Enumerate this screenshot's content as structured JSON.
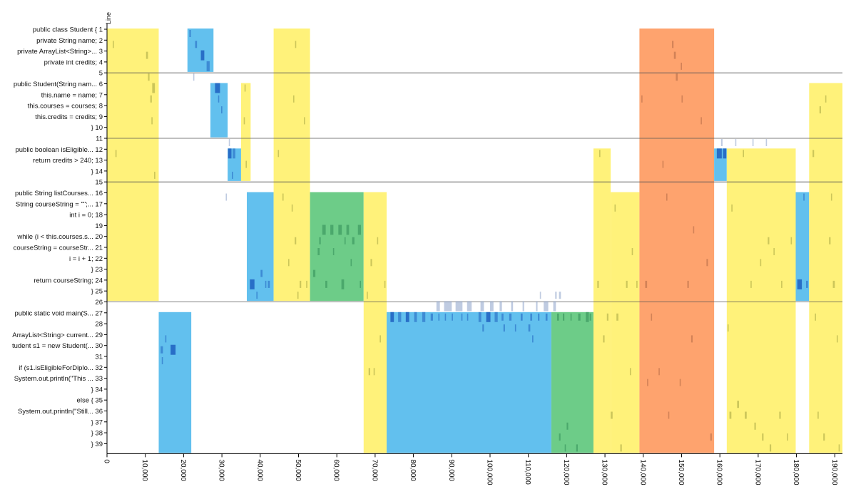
{
  "chart_data": {
    "type": "heatmap",
    "y_axis_title": "Line",
    "x_range": [
      0,
      192000
    ],
    "x_ticks": [
      0,
      10000,
      20000,
      30000,
      40000,
      50000,
      60000,
      70000,
      80000,
      90000,
      100000,
      110000,
      120000,
      130000,
      140000,
      150000,
      160000,
      170000,
      180000,
      190000
    ],
    "x_tick_labels": [
      "0",
      "10,000",
      "20,000",
      "30,000",
      "40,000",
      "50,000",
      "60,000",
      "70,000",
      "80,000",
      "90,000",
      "100,000",
      "110,000",
      "120,000",
      "130,000",
      "140,000",
      "150,000",
      "160,000",
      "170,000",
      "180,000",
      "190,000"
    ],
    "line_labels": [
      "public class Student { 1",
      "private String name; 2",
      "private ArrayList<String>... 3",
      "private int credits; 4",
      "5",
      "public Student(String nam... 6",
      "this.name = name; 7",
      "this.courses = courses; 8",
      "this.credits = credits; 9",
      "} 10",
      "11",
      "public boolean isEligible... 12",
      "return credits > 240; 13",
      "} 14",
      "15",
      "public String listCourses... 16",
      "String courseString = \"\";... 17",
      "int i = 0; 18",
      "19",
      "while (i < this.courses.s... 20",
      "courseString = courseStr... 21",
      "i = i + 1; 22",
      "} 23",
      "return courseString; 24",
      "} 25",
      "26",
      "public static void main(S... 27",
      "28",
      "ArrayList<String> current... 29",
      "tudent s1 = new Student(... 30",
      "31",
      "if (s1.isEligibleForDiplo... 32",
      "System.out.println(\"This ... 33",
      "} 34",
      "else { 35",
      "System.out.println(\"Still... 36",
      "} 37",
      "} 38",
      "} 39"
    ],
    "separator_lines": [
      5,
      11,
      15,
      26
    ],
    "colors": {
      "yellow": "#fff27a",
      "blue": "#62c0ee",
      "green": "#6dcc88",
      "orange": "#fea36e",
      "separator": "#555555",
      "fixation_light": "#8aa0c8",
      "fixation_dark": "#1f5fbf",
      "fixation_olive": "#9a9a3a"
    },
    "regions": [
      {
        "x0": 0,
        "x1": 13500,
        "y0": 1,
        "y1": 25,
        "color": "yellow"
      },
      {
        "x0": 13500,
        "x1": 22000,
        "y0": 27,
        "y1": 39,
        "color": "blue"
      },
      {
        "x0": 21000,
        "x1": 27800,
        "y0": 1,
        "y1": 4,
        "color": "blue"
      },
      {
        "x0": 27000,
        "x1": 31500,
        "y0": 6,
        "y1": 10,
        "color": "blue"
      },
      {
        "x0": 31500,
        "x1": 35000,
        "y0": 12,
        "y1": 14,
        "color": "blue"
      },
      {
        "x0": 35000,
        "x1": 37500,
        "y0": 6,
        "y1": 14,
        "color": "yellow"
      },
      {
        "x0": 36500,
        "x1": 43500,
        "y0": 16,
        "y1": 25,
        "color": "blue"
      },
      {
        "x0": 43500,
        "x1": 53000,
        "y0": 1,
        "y1": 25,
        "color": "yellow"
      },
      {
        "x0": 53000,
        "x1": 67000,
        "y0": 16,
        "y1": 25,
        "color": "green"
      },
      {
        "x0": 67000,
        "x1": 73000,
        "y0": 16,
        "y1": 39,
        "color": "yellow"
      },
      {
        "x0": 73000,
        "x1": 116000,
        "y0": 27,
        "y1": 39,
        "color": "blue"
      },
      {
        "x0": 116000,
        "x1": 127000,
        "y0": 27,
        "y1": 39,
        "color": "green"
      },
      {
        "x0": 127000,
        "x1": 131500,
        "y0": 12,
        "y1": 39,
        "color": "yellow"
      },
      {
        "x0": 131500,
        "x1": 139000,
        "y0": 16,
        "y1": 39,
        "color": "yellow"
      },
      {
        "x0": 139000,
        "x1": 158500,
        "y0": 1,
        "y1": 39,
        "color": "orange"
      },
      {
        "x0": 158500,
        "x1": 161800,
        "y0": 12,
        "y1": 14,
        "color": "blue"
      },
      {
        "x0": 161800,
        "x1": 179800,
        "y0": 12,
        "y1": 39,
        "color": "yellow"
      },
      {
        "x0": 179800,
        "x1": 183300,
        "y0": 16,
        "y1": 25,
        "color": "blue"
      },
      {
        "x0": 183300,
        "x1": 192000,
        "y0": 6,
        "y1": 39,
        "color": "yellow"
      }
    ],
    "fixations": [
      {
        "x": 1500,
        "line": 2,
        "dur": 300
      },
      {
        "x": 10200,
        "line": 3,
        "dur": 500
      },
      {
        "x": 11300,
        "line": 7,
        "dur": 400
      },
      {
        "x": 11800,
        "line": 6,
        "dur": 700
      },
      {
        "x": 11600,
        "line": 9,
        "dur": 300
      },
      {
        "x": 12300,
        "line": 14,
        "dur": 300
      },
      {
        "x": 10700,
        "line": 5,
        "dur": 400
      },
      {
        "x": 2200,
        "line": 12,
        "dur": 300
      },
      {
        "x": 14000,
        "line": 30,
        "dur": 600
      },
      {
        "x": 16600,
        "line": 30,
        "dur": 1300
      },
      {
        "x": 15200,
        "line": 29,
        "dur": 300
      },
      {
        "x": 14300,
        "line": 31,
        "dur": 200
      },
      {
        "x": 21500,
        "line": 1,
        "dur": 400
      },
      {
        "x": 23000,
        "line": 2,
        "dur": 500
      },
      {
        "x": 24500,
        "line": 3,
        "dur": 900
      },
      {
        "x": 26000,
        "line": 4,
        "dur": 800
      },
      {
        "x": 22500,
        "line": 5,
        "dur": 300
      },
      {
        "x": 28200,
        "line": 6,
        "dur": 1300
      },
      {
        "x": 29800,
        "line": 8,
        "dur": 300
      },
      {
        "x": 29000,
        "line": 7,
        "dur": 300
      },
      {
        "x": 31600,
        "line": 12,
        "dur": 900
      },
      {
        "x": 32800,
        "line": 12,
        "dur": 700
      },
      {
        "x": 31800,
        "line": 11,
        "dur": 300
      },
      {
        "x": 32600,
        "line": 14,
        "dur": 300
      },
      {
        "x": 31000,
        "line": 16,
        "dur": 200
      },
      {
        "x": 35900,
        "line": 6,
        "dur": 300
      },
      {
        "x": 36200,
        "line": 13,
        "dur": 300
      },
      {
        "x": 35700,
        "line": 9,
        "dur": 200
      },
      {
        "x": 37300,
        "line": 24,
        "dur": 1200
      },
      {
        "x": 40100,
        "line": 23,
        "dur": 500
      },
      {
        "x": 42000,
        "line": 24,
        "dur": 500
      },
      {
        "x": 39000,
        "line": 25,
        "dur": 300
      },
      {
        "x": 41300,
        "line": 24,
        "dur": 300
      },
      {
        "x": 44600,
        "line": 12,
        "dur": 300
      },
      {
        "x": 45800,
        "line": 16,
        "dur": 300
      },
      {
        "x": 48600,
        "line": 7,
        "dur": 300
      },
      {
        "x": 49100,
        "line": 2,
        "dur": 300
      },
      {
        "x": 48200,
        "line": 17,
        "dur": 300
      },
      {
        "x": 49000,
        "line": 20,
        "dur": 400
      },
      {
        "x": 47300,
        "line": 22,
        "dur": 300
      },
      {
        "x": 51400,
        "line": 9,
        "dur": 300
      },
      {
        "x": 50300,
        "line": 24,
        "dur": 400
      },
      {
        "x": 49700,
        "line": 25,
        "dur": 300
      },
      {
        "x": 52000,
        "line": 24,
        "dur": 300
      },
      {
        "x": 53800,
        "line": 23,
        "dur": 600
      },
      {
        "x": 55000,
        "line": 21,
        "dur": 500
      },
      {
        "x": 56200,
        "line": 19,
        "dur": 900
      },
      {
        "x": 58300,
        "line": 19,
        "dur": 800
      },
      {
        "x": 60400,
        "line": 19,
        "dur": 900
      },
      {
        "x": 62500,
        "line": 19,
        "dur": 700
      },
      {
        "x": 64000,
        "line": 20,
        "dur": 600
      },
      {
        "x": 65500,
        "line": 19,
        "dur": 800
      },
      {
        "x": 59000,
        "line": 21,
        "dur": 300
      },
      {
        "x": 61200,
        "line": 24,
        "dur": 700
      },
      {
        "x": 57000,
        "line": 24,
        "dur": 500
      },
      {
        "x": 63600,
        "line": 22,
        "dur": 300
      },
      {
        "x": 55400,
        "line": 20,
        "dur": 400
      },
      {
        "x": 66000,
        "line": 24,
        "dur": 300
      },
      {
        "x": 62000,
        "line": 20,
        "dur": 300
      },
      {
        "x": 68800,
        "line": 22,
        "dur": 400
      },
      {
        "x": 70500,
        "line": 20,
        "dur": 300
      },
      {
        "x": 67800,
        "line": 25,
        "dur": 300
      },
      {
        "x": 71200,
        "line": 29,
        "dur": 300
      },
      {
        "x": 68300,
        "line": 32,
        "dur": 400
      },
      {
        "x": 69600,
        "line": 32,
        "dur": 300
      },
      {
        "x": 72400,
        "line": 24,
        "dur": 300
      },
      {
        "x": 74000,
        "line": 27,
        "dur": 900
      },
      {
        "x": 76000,
        "line": 27,
        "dur": 800
      },
      {
        "x": 78000,
        "line": 27,
        "dur": 900
      },
      {
        "x": 80200,
        "line": 27,
        "dur": 700
      },
      {
        "x": 82300,
        "line": 27,
        "dur": 800
      },
      {
        "x": 84500,
        "line": 27,
        "dur": 600
      },
      {
        "x": 86500,
        "line": 27,
        "dur": 300
      },
      {
        "x": 88200,
        "line": 27,
        "dur": 300
      },
      {
        "x": 90000,
        "line": 27,
        "dur": 300
      },
      {
        "x": 92500,
        "line": 27,
        "dur": 300
      },
      {
        "x": 94000,
        "line": 27,
        "dur": 200
      },
      {
        "x": 97000,
        "line": 27,
        "dur": 700
      },
      {
        "x": 99000,
        "line": 27,
        "dur": 1100
      },
      {
        "x": 101200,
        "line": 27,
        "dur": 800
      },
      {
        "x": 103000,
        "line": 27,
        "dur": 500
      },
      {
        "x": 105000,
        "line": 27,
        "dur": 600
      },
      {
        "x": 108000,
        "line": 27,
        "dur": 500
      },
      {
        "x": 110500,
        "line": 27,
        "dur": 500
      },
      {
        "x": 112500,
        "line": 27,
        "dur": 400
      },
      {
        "x": 114500,
        "line": 27,
        "dur": 500
      },
      {
        "x": 86000,
        "line": 26,
        "dur": 900
      },
      {
        "x": 88000,
        "line": 26,
        "dur": 2000
      },
      {
        "x": 91000,
        "line": 26,
        "dur": 1800
      },
      {
        "x": 94000,
        "line": 26,
        "dur": 1200
      },
      {
        "x": 97500,
        "line": 26,
        "dur": 900
      },
      {
        "x": 100000,
        "line": 26,
        "dur": 900
      },
      {
        "x": 102500,
        "line": 26,
        "dur": 600
      },
      {
        "x": 105500,
        "line": 26,
        "dur": 500
      },
      {
        "x": 108500,
        "line": 26,
        "dur": 400
      },
      {
        "x": 112000,
        "line": 26,
        "dur": 400
      },
      {
        "x": 114000,
        "line": 26,
        "dur": 1200
      },
      {
        "x": 116500,
        "line": 26,
        "dur": 700
      },
      {
        "x": 118000,
        "line": 25,
        "dur": 500
      },
      {
        "x": 117000,
        "line": 25,
        "dur": 400
      },
      {
        "x": 113000,
        "line": 25,
        "dur": 200
      },
      {
        "x": 98000,
        "line": 28,
        "dur": 400
      },
      {
        "x": 103500,
        "line": 28,
        "dur": 400
      },
      {
        "x": 110000,
        "line": 28,
        "dur": 500
      },
      {
        "x": 106500,
        "line": 28,
        "dur": 300
      },
      {
        "x": 111000,
        "line": 29,
        "dur": 300
      },
      {
        "x": 117500,
        "line": 27,
        "dur": 500
      },
      {
        "x": 119000,
        "line": 27,
        "dur": 400
      },
      {
        "x": 121000,
        "line": 27,
        "dur": 300
      },
      {
        "x": 123000,
        "line": 27,
        "dur": 600
      },
      {
        "x": 125000,
        "line": 27,
        "dur": 800
      },
      {
        "x": 126000,
        "line": 27,
        "dur": 400
      },
      {
        "x": 118000,
        "line": 38,
        "dur": 400
      },
      {
        "x": 120000,
        "line": 37,
        "dur": 400
      },
      {
        "x": 122500,
        "line": 39,
        "dur": 400
      },
      {
        "x": 119500,
        "line": 39,
        "dur": 300
      },
      {
        "x": 128500,
        "line": 12,
        "dur": 300
      },
      {
        "x": 130500,
        "line": 27,
        "dur": 400
      },
      {
        "x": 133000,
        "line": 27,
        "dur": 500
      },
      {
        "x": 135500,
        "line": 24,
        "dur": 400
      },
      {
        "x": 137000,
        "line": 21,
        "dur": 300
      },
      {
        "x": 128000,
        "line": 24,
        "dur": 400
      },
      {
        "x": 131500,
        "line": 36,
        "dur": 500
      },
      {
        "x": 134000,
        "line": 39,
        "dur": 400
      },
      {
        "x": 136500,
        "line": 32,
        "dur": 300
      },
      {
        "x": 129500,
        "line": 29,
        "dur": 400
      },
      {
        "x": 132500,
        "line": 17,
        "dur": 300
      },
      {
        "x": 138200,
        "line": 24,
        "dur": 300
      },
      {
        "x": 139500,
        "line": 7,
        "dur": 300
      },
      {
        "x": 140500,
        "line": 24,
        "dur": 500
      },
      {
        "x": 142000,
        "line": 27,
        "dur": 300
      },
      {
        "x": 145000,
        "line": 13,
        "dur": 300
      },
      {
        "x": 146000,
        "line": 16,
        "dur": 300
      },
      {
        "x": 147500,
        "line": 2,
        "dur": 400
      },
      {
        "x": 148000,
        "line": 3,
        "dur": 500
      },
      {
        "x": 148500,
        "line": 5,
        "dur": 500
      },
      {
        "x": 149800,
        "line": 4,
        "dur": 300
      },
      {
        "x": 150000,
        "line": 7,
        "dur": 300
      },
      {
        "x": 151500,
        "line": 24,
        "dur": 400
      },
      {
        "x": 152500,
        "line": 29,
        "dur": 400
      },
      {
        "x": 153000,
        "line": 19,
        "dur": 300
      },
      {
        "x": 155000,
        "line": 9,
        "dur": 300
      },
      {
        "x": 156500,
        "line": 22,
        "dur": 400
      },
      {
        "x": 157500,
        "line": 38,
        "dur": 400
      },
      {
        "x": 144000,
        "line": 32,
        "dur": 300
      },
      {
        "x": 149500,
        "line": 33,
        "dur": 300
      },
      {
        "x": 141000,
        "line": 33,
        "dur": 200
      },
      {
        "x": 146500,
        "line": 36,
        "dur": 300
      },
      {
        "x": 159200,
        "line": 12,
        "dur": 1300
      },
      {
        "x": 160800,
        "line": 12,
        "dur": 900
      },
      {
        "x": 160300,
        "line": 11,
        "dur": 400
      },
      {
        "x": 164000,
        "line": 11,
        "dur": 200
      },
      {
        "x": 168500,
        "line": 11,
        "dur": 200
      },
      {
        "x": 172000,
        "line": 11,
        "dur": 200
      },
      {
        "x": 162500,
        "line": 36,
        "dur": 500
      },
      {
        "x": 164500,
        "line": 35,
        "dur": 500
      },
      {
        "x": 166500,
        "line": 36,
        "dur": 500
      },
      {
        "x": 169000,
        "line": 37,
        "dur": 400
      },
      {
        "x": 171000,
        "line": 38,
        "dur": 400
      },
      {
        "x": 173000,
        "line": 39,
        "dur": 400
      },
      {
        "x": 175500,
        "line": 36,
        "dur": 400
      },
      {
        "x": 177500,
        "line": 38,
        "dur": 300
      },
      {
        "x": 168000,
        "line": 24,
        "dur": 300
      },
      {
        "x": 170500,
        "line": 22,
        "dur": 300
      },
      {
        "x": 172500,
        "line": 20,
        "dur": 400
      },
      {
        "x": 174000,
        "line": 21,
        "dur": 300
      },
      {
        "x": 176000,
        "line": 24,
        "dur": 300
      },
      {
        "x": 178500,
        "line": 20,
        "dur": 300
      },
      {
        "x": 163000,
        "line": 17,
        "dur": 300
      },
      {
        "x": 166000,
        "line": 12,
        "dur": 300
      },
      {
        "x": 162000,
        "line": 28,
        "dur": 300
      },
      {
        "x": 180200,
        "line": 24,
        "dur": 1200
      },
      {
        "x": 181800,
        "line": 16,
        "dur": 300
      },
      {
        "x": 182500,
        "line": 24,
        "dur": 500
      },
      {
        "x": 184200,
        "line": 12,
        "dur": 400
      },
      {
        "x": 186000,
        "line": 8,
        "dur": 400
      },
      {
        "x": 187500,
        "line": 7,
        "dur": 300
      },
      {
        "x": 188500,
        "line": 20,
        "dur": 400
      },
      {
        "x": 189500,
        "line": 24,
        "dur": 500
      },
      {
        "x": 190500,
        "line": 29,
        "dur": 300
      },
      {
        "x": 185500,
        "line": 36,
        "dur": 300
      },
      {
        "x": 187000,
        "line": 38,
        "dur": 400
      },
      {
        "x": 189000,
        "line": 16,
        "dur": 300
      },
      {
        "x": 191000,
        "line": 39,
        "dur": 300
      },
      {
        "x": 184800,
        "line": 27,
        "dur": 300
      }
    ]
  }
}
